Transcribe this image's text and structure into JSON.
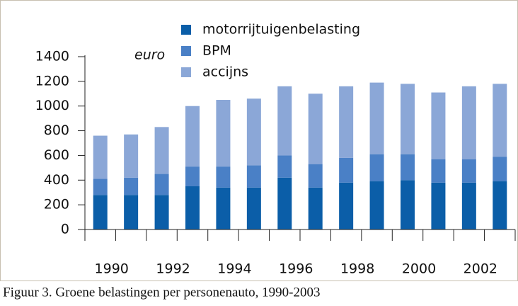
{
  "chart_data": {
    "type": "stacked_bar",
    "ylabel": "euro",
    "caption": "Figuur 3. Groene belastingen per personenauto, 1990-2003",
    "categories": [
      "1990",
      null,
      "1992",
      null,
      "1994",
      null,
      "1996",
      null,
      "1998",
      null,
      "2000",
      null,
      "2002",
      null
    ],
    "series": [
      {
        "name": "motorrijtuigenbelasting",
        "color": "#0b5ea8",
        "values": [
          280,
          280,
          280,
          350,
          340,
          340,
          420,
          340,
          380,
          390,
          400,
          380,
          380,
          390
        ]
      },
      {
        "name": "BPM",
        "color": "#4a80c6",
        "values": [
          130,
          140,
          170,
          160,
          170,
          180,
          180,
          190,
          200,
          220,
          210,
          190,
          190,
          200
        ]
      },
      {
        "name": "accijns",
        "color": "#8ba7d7",
        "values": [
          350,
          350,
          380,
          490,
          540,
          540,
          560,
          570,
          580,
          580,
          570,
          540,
          590,
          590
        ]
      }
    ],
    "ylim": [
      0,
      1400
    ],
    "yticks": [
      0,
      200,
      400,
      600,
      800,
      1000,
      1200,
      1400
    ]
  }
}
